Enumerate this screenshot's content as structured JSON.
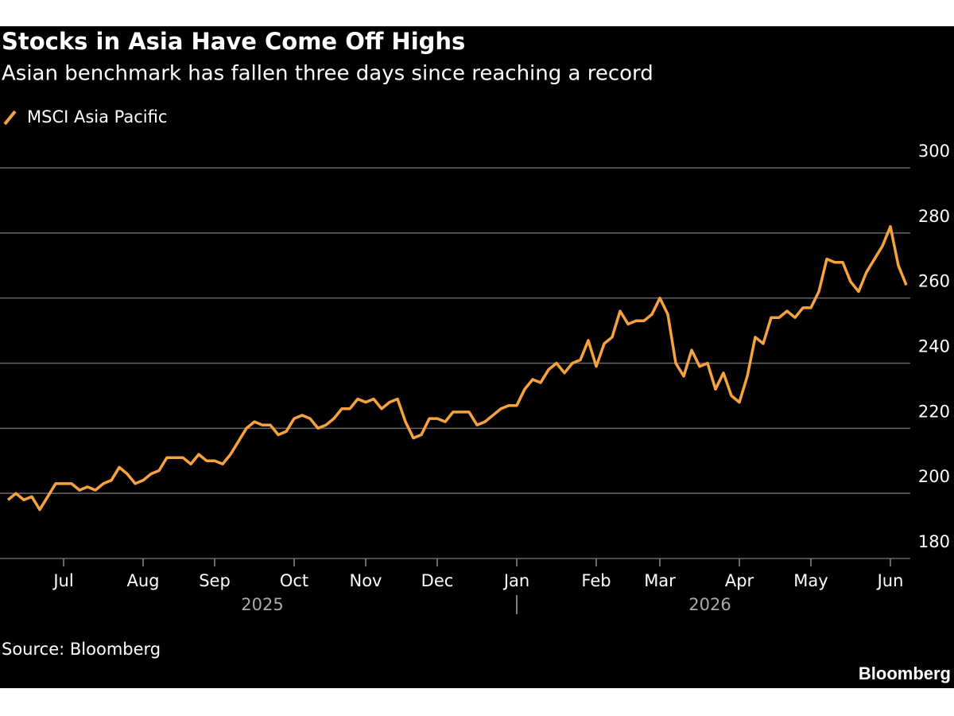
{
  "chart_data": {
    "type": "line",
    "title": "Stocks in Asia Have Come Off Highs",
    "subtitle": "Asian benchmark has fallen three days since reaching a record",
    "source": "Source: Bloomberg",
    "brand": "Bloomberg",
    "categories": [
      null,
      null,
      null,
      null,
      null,
      null,
      null,
      "Jul",
      null,
      null,
      null,
      null,
      null,
      null,
      null,
      null,
      null,
      "Aug",
      null,
      null,
      null,
      null,
      null,
      null,
      null,
      null,
      "Sep",
      null,
      null,
      null,
      null,
      null,
      null,
      null,
      null,
      null,
      "Oct",
      null,
      null,
      null,
      null,
      null,
      null,
      null,
      null,
      "Nov",
      null,
      null,
      null,
      null,
      null,
      null,
      null,
      null,
      "Dec",
      null,
      null,
      null,
      null,
      null,
      null,
      null,
      null,
      null,
      "Jan",
      null,
      null,
      null,
      null,
      null,
      null,
      null,
      null,
      null,
      "Feb",
      null,
      null,
      null,
      null,
      null,
      null,
      null,
      "Mar",
      null,
      null,
      null,
      null,
      null,
      null,
      null,
      null,
      null,
      "Apr",
      null,
      null,
      null,
      null,
      null,
      null,
      null,
      null,
      "May",
      null,
      null,
      null,
      null,
      null,
      null,
      null,
      null,
      null,
      "Jun",
      null,
      null
    ],
    "x_group_labels": [
      "2025",
      "2026"
    ],
    "series": [
      {
        "name": "MSCI Asia Pacific",
        "color": "#f7a33d",
        "values": [
          198,
          200,
          198,
          199,
          195,
          199,
          203,
          203,
          203,
          201,
          202,
          201,
          203,
          204,
          208,
          206,
          203,
          204,
          206,
          207,
          211,
          211,
          211,
          209,
          212,
          210,
          210,
          209,
          212,
          216,
          220,
          222,
          221,
          221,
          218,
          219,
          223,
          224,
          223,
          220,
          221,
          223,
          226,
          226,
          229,
          228,
          229,
          226,
          228,
          229,
          222,
          217,
          218,
          223,
          223,
          222,
          225,
          225,
          225,
          221,
          222,
          224,
          226,
          227,
          227,
          232,
          235,
          234,
          238,
          240,
          237,
          240,
          241,
          247,
          239,
          246,
          248,
          256,
          252,
          253,
          253,
          255,
          260,
          255,
          240,
          236,
          244,
          239,
          240,
          232,
          237,
          230,
          228,
          236,
          248,
          246,
          254,
          254,
          256,
          254,
          257,
          257,
          262,
          272,
          271,
          271,
          265,
          262,
          268,
          272,
          276,
          282,
          270,
          264
        ]
      }
    ],
    "ylim": [
      180,
      300
    ],
    "yticks": [
      180,
      200,
      220,
      240,
      260,
      280,
      300
    ],
    "grid": true
  }
}
